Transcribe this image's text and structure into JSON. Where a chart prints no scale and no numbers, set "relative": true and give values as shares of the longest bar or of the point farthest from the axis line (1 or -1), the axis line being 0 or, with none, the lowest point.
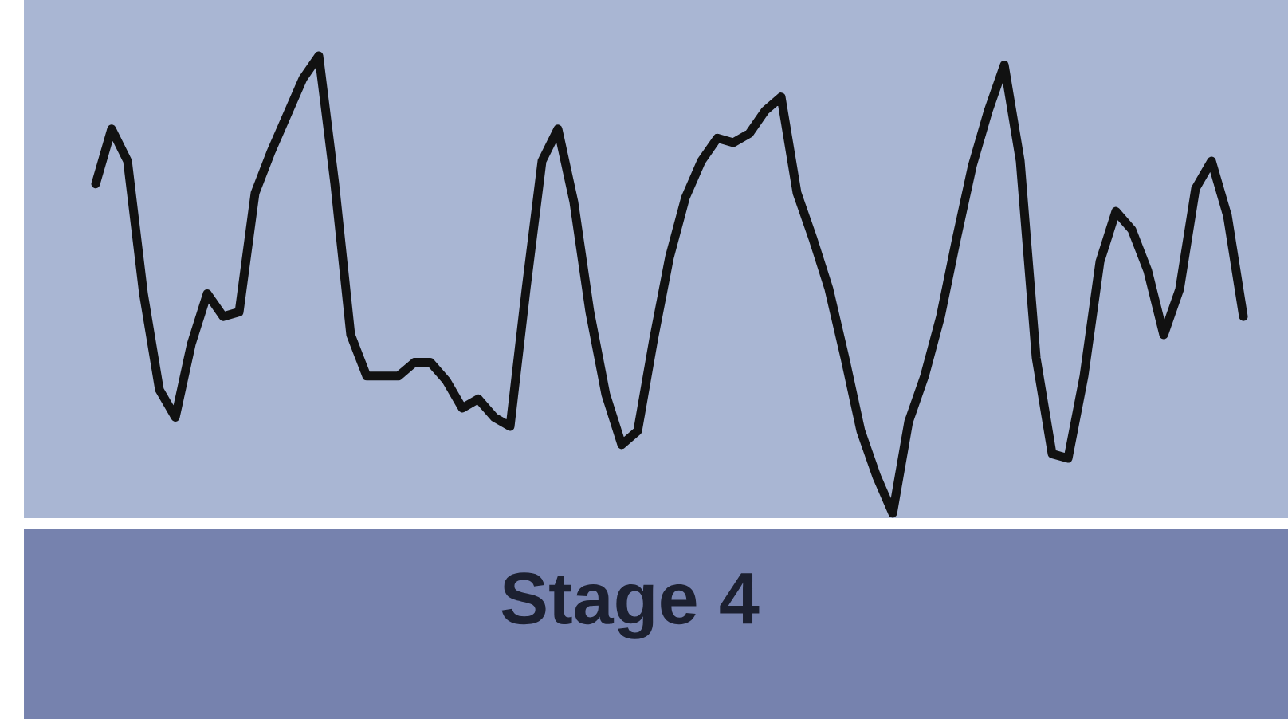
{
  "chart_data": {
    "type": "line",
    "title": "Stage 4",
    "relative": true,
    "color": "#111111",
    "categories": [
      null,
      null,
      null,
      null,
      null,
      null,
      null,
      null,
      null,
      null,
      null,
      null,
      null,
      null,
      null,
      null,
      null,
      null,
      null,
      null,
      null,
      null,
      null,
      null,
      null,
      null,
      null,
      null,
      null,
      null,
      null,
      null,
      null,
      null,
      null,
      null,
      null,
      null,
      null,
      null,
      null,
      null,
      null,
      null,
      null,
      null,
      null,
      null,
      null,
      null,
      null,
      null,
      null,
      null,
      null,
      null,
      null,
      null,
      null,
      null,
      null,
      null,
      null,
      null,
      null,
      null,
      null,
      null,
      null,
      null,
      null,
      null,
      null
    ],
    "values": [
      0.72,
      0.84,
      0.77,
      0.48,
      0.27,
      0.21,
      0.37,
      0.48,
      0.43,
      0.44,
      0.7,
      0.79,
      0.87,
      0.95,
      1,
      0.72,
      0.39,
      0.3,
      0.3,
      0.3,
      0.33,
      0.33,
      0.29,
      0.23,
      0.25,
      0.21,
      0.19,
      0.49,
      0.77,
      0.84,
      0.68,
      0.44,
      0.26,
      0.15,
      0.18,
      0.38,
      0.56,
      0.69,
      0.77,
      0.82,
      0.81,
      0.83,
      0.88,
      0.91,
      0.7,
      0.6,
      0.49,
      0.34,
      0.18,
      0.08,
      0,
      0.2,
      0.3,
      0.43,
      0.6,
      0.76,
      0.88,
      0.98,
      0.77,
      0.34,
      0.13,
      0.12,
      0.3,
      0.55,
      0.66,
      0.62,
      0.53,
      0.39,
      0.49,
      0.71,
      0.77,
      0.65,
      0.43
    ]
  }
}
